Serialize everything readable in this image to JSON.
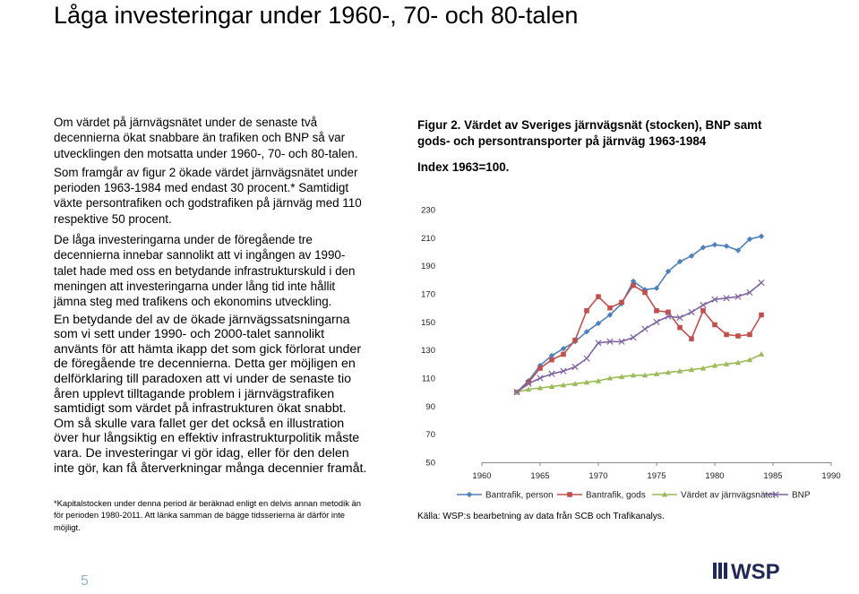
{
  "page": {
    "title": "Låga investeringar under 1960-, 70- och 80-talen",
    "page_number": "5"
  },
  "body": {
    "p1": "Om värdet på järnvägsnätet under de senaste två decennierna ökat snabbare än trafiken och BNP så var utvecklingen den motsatta under 1960-, 70- och 80-talen.",
    "p2": "Som framgår av figur 2 ökade värdet järnvägsnätet under perioden 1963-1984 med endast 30 procent.* Samtidigt växte persontrafiken och godstrafiken på järnväg med 110 respektive 50 procent.",
    "p3": "De låga investeringarna under de föregående tre decennierna innebar sannolikt att vi ingången av 1990-talet hade med oss en betydande infrastrukturskuld i den meningen att investeringarna under lång tid inte hållit jämna steg med trafikens och ekonomins utveckling.",
    "p4": "En betydande del av de ökade järnvägssatsningarna som vi sett under 1990- och 2000-talet sannolikt använts för att hämta ikapp det som gick förlorat under de föregående tre decennierna. Detta ger möjligen en delförklaring till paradoxen att vi under de senaste tio åren upplevt tilltagande problem i järnvägstrafiken samtidigt som värdet på infrastrukturen ökat snabbt. Om så skulle vara fallet ger det också en illustration över hur långsiktig en effektiv infrastrukturpolitik måste vara. De investeringar vi gör idag, eller för den delen inte gör, kan få återverkningar många decennier framåt."
  },
  "footnote": "*Kapitalstocken under denna period är beräknad enligt en delvis annan metodik än för perioden 1980-2011. Att länka samman de bägge tidsserierna är därför inte möjligt.",
  "figure": {
    "title": "Figur 2. Värdet av Sveriges järnvägsnät (stocken), BNP samt gods- och persontransporter på järnväg 1963-1984",
    "index_label": "Index 1963=100.",
    "source": "Källa: WSP:s  bearbetning av data från SCB och Trafikanalys."
  },
  "logo": {
    "text": "WSP",
    "color": "#1e2a55"
  },
  "chart_data": {
    "type": "line",
    "x": [
      1963,
      1964,
      1965,
      1966,
      1967,
      1968,
      1969,
      1970,
      1971,
      1972,
      1973,
      1974,
      1975,
      1976,
      1977,
      1978,
      1979,
      1980,
      1981,
      1982,
      1983,
      1984
    ],
    "xlim": [
      1960,
      1990
    ],
    "ylim": [
      50,
      230
    ],
    "xticks": [
      1960,
      1965,
      1970,
      1975,
      1980,
      1985,
      1990
    ],
    "yticks": [
      50,
      70,
      90,
      110,
      130,
      150,
      170,
      190,
      210,
      230
    ],
    "grid": false,
    "legend": "bottom",
    "series": [
      {
        "name": "Bantrafik, person",
        "color": "#4f81bd",
        "marker": "diamond",
        "values": [
          100,
          108,
          119,
          126,
          131,
          136,
          143,
          149,
          155,
          163,
          179,
          173,
          174,
          186,
          193,
          197,
          203,
          205,
          204,
          201,
          209,
          211
        ]
      },
      {
        "name": "Bantrafik, gods",
        "color": "#c0504d",
        "marker": "square",
        "values": [
          100,
          107,
          117,
          123,
          127,
          137,
          158,
          168,
          160,
          164,
          176,
          171,
          158,
          157,
          146,
          138,
          158,
          148,
          141,
          140,
          141,
          155
        ]
      },
      {
        "name": "Värdet av järnvägsnätet",
        "color": "#9bbb59",
        "marker": "triangle",
        "values": [
          100,
          102,
          103,
          104,
          105,
          106,
          107,
          108,
          110,
          111,
          112,
          112,
          113,
          114,
          115,
          116,
          117,
          119,
          120,
          121,
          123,
          127
        ]
      },
      {
        "name": "BNP",
        "color": "#8064a2",
        "marker": "cross",
        "values": [
          100,
          106,
          110,
          113,
          115,
          118,
          124,
          135,
          136,
          136,
          139,
          145,
          150,
          154,
          153,
          157,
          162,
          166,
          167,
          168,
          171,
          178
        ]
      }
    ]
  }
}
